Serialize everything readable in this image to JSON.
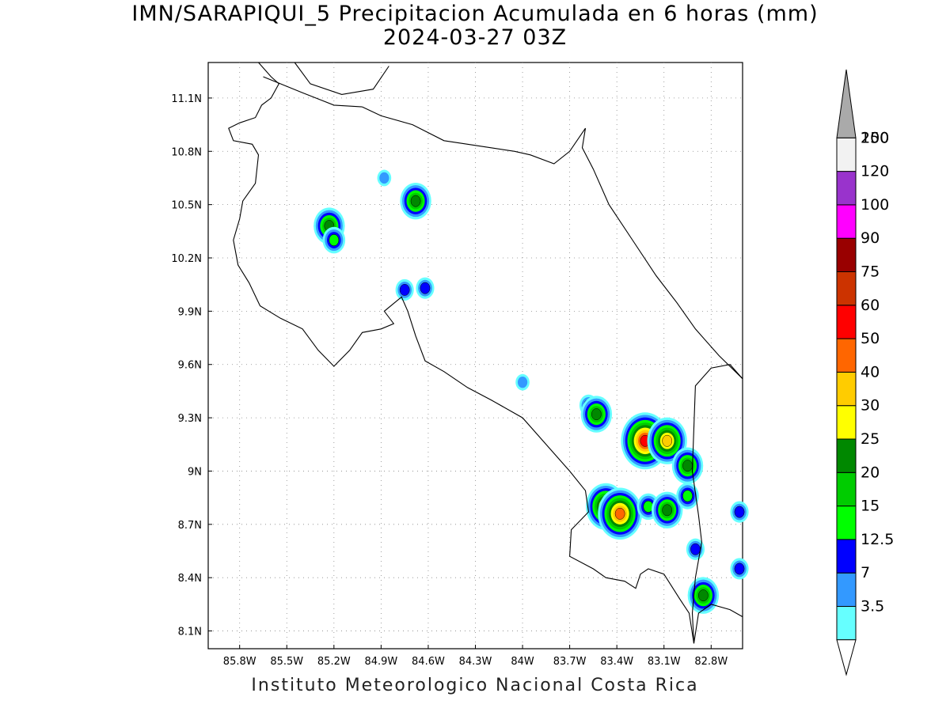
{
  "title": {
    "line1": "IMN/SARAPIQUI_5 Precipitacion Acumulada en 6 horas (mm)",
    "line2": "2024-03-27 03Z"
  },
  "credit": "Instituto Meteorologico Nacional Costa Rica",
  "map": {
    "lon_range": [
      -86.0,
      -82.6
    ],
    "lat_range": [
      8.0,
      11.3
    ],
    "lon_ticks": [
      {
        "value": -85.8,
        "label": "85.8W"
      },
      {
        "value": -85.5,
        "label": "85.5W"
      },
      {
        "value": -85.2,
        "label": "85.2W"
      },
      {
        "value": -84.9,
        "label": "84.9W"
      },
      {
        "value": -84.6,
        "label": "84.6W"
      },
      {
        "value": -84.3,
        "label": "84.3W"
      },
      {
        "value": -84.0,
        "label": "84W"
      },
      {
        "value": -83.7,
        "label": "83.7W"
      },
      {
        "value": -83.4,
        "label": "83.4W"
      },
      {
        "value": -83.1,
        "label": "83.1W"
      },
      {
        "value": -82.8,
        "label": "82.8W"
      }
    ],
    "lat_ticks": [
      {
        "value": 11.1,
        "label": "11.1N"
      },
      {
        "value": 10.8,
        "label": "10.8N"
      },
      {
        "value": 10.5,
        "label": "10.5N"
      },
      {
        "value": 10.2,
        "label": "10.2N"
      },
      {
        "value": 9.9,
        "label": "9.9N"
      },
      {
        "value": 9.6,
        "label": "9.6N"
      },
      {
        "value": 9.3,
        "label": "9.3N"
      },
      {
        "value": 9.0,
        "label": "9N"
      },
      {
        "value": 8.7,
        "label": "8.7N"
      },
      {
        "value": 8.4,
        "label": "8.4N"
      },
      {
        "value": 8.1,
        "label": "8.1N"
      }
    ],
    "grid": "dotted",
    "coastline": [
      [
        -85.68,
        11.3
      ],
      [
        -85.6,
        11.22
      ],
      [
        -85.55,
        11.18
      ],
      [
        -85.6,
        11.1
      ],
      [
        -85.66,
        11.06
      ],
      [
        -85.7,
        10.99
      ],
      [
        -85.8,
        10.96
      ],
      [
        -85.87,
        10.93
      ],
      [
        -85.84,
        10.86
      ],
      [
        -85.72,
        10.84
      ],
      [
        -85.68,
        10.78
      ],
      [
        -85.7,
        10.62
      ],
      [
        -85.78,
        10.52
      ],
      [
        -85.8,
        10.42
      ],
      [
        -85.84,
        10.3
      ],
      [
        -85.81,
        10.16
      ],
      [
        -85.74,
        10.06
      ],
      [
        -85.67,
        9.93
      ],
      [
        -85.54,
        9.86
      ],
      [
        -85.4,
        9.8
      ],
      [
        -85.3,
        9.68
      ],
      [
        -85.2,
        9.59
      ],
      [
        -85.1,
        9.68
      ],
      [
        -85.02,
        9.78
      ],
      [
        -84.9,
        9.8
      ],
      [
        -84.82,
        9.83
      ],
      [
        -84.88,
        9.9
      ],
      [
        -84.77,
        9.98
      ],
      [
        -84.73,
        9.9
      ],
      [
        -84.68,
        9.76
      ],
      [
        -84.62,
        9.62
      ],
      [
        -84.5,
        9.56
      ],
      [
        -84.35,
        9.47
      ],
      [
        -84.2,
        9.4
      ],
      [
        -84.0,
        9.3
      ],
      [
        -83.85,
        9.15
      ],
      [
        -83.7,
        9.0
      ],
      [
        -83.6,
        8.89
      ],
      [
        -83.58,
        8.77
      ],
      [
        -83.69,
        8.67
      ],
      [
        -83.7,
        8.52
      ],
      [
        -83.55,
        8.45
      ],
      [
        -83.47,
        8.4
      ],
      [
        -83.35,
        8.38
      ],
      [
        -83.28,
        8.34
      ],
      [
        -83.25,
        8.42
      ],
      [
        -83.2,
        8.45
      ],
      [
        -83.1,
        8.42
      ],
      [
        -83.0,
        8.28
      ],
      [
        -82.94,
        8.2
      ],
      [
        -82.91,
        8.03
      ],
      [
        -82.88,
        8.2
      ],
      [
        -82.8,
        8.25
      ],
      [
        -82.68,
        8.22
      ],
      [
        -82.6,
        8.18
      ]
    ],
    "caribbean_coast": [
      [
        -85.02,
        11.05
      ],
      [
        -84.9,
        11.0
      ],
      [
        -84.7,
        10.95
      ],
      [
        -84.5,
        10.86
      ],
      [
        -84.35,
        10.84
      ],
      [
        -84.2,
        10.82
      ],
      [
        -84.05,
        10.8
      ],
      [
        -83.95,
        10.78
      ],
      [
        -83.8,
        10.73
      ],
      [
        -83.7,
        10.8
      ],
      [
        -83.6,
        10.93
      ],
      [
        -83.62,
        10.82
      ],
      [
        -83.55,
        10.7
      ],
      [
        -83.45,
        10.5
      ],
      [
        -83.3,
        10.3
      ],
      [
        -83.15,
        10.1
      ],
      [
        -83.02,
        9.95
      ],
      [
        -82.9,
        9.8
      ],
      [
        -82.75,
        9.65
      ],
      [
        -82.6,
        9.52
      ]
    ],
    "border": [
      [
        -85.65,
        11.22
      ],
      [
        -85.4,
        11.13
      ],
      [
        -85.2,
        11.06
      ],
      [
        -85.02,
        11.05
      ]
    ],
    "panama_border": [
      [
        -82.6,
        9.52
      ],
      [
        -82.68,
        9.6
      ],
      [
        -82.8,
        9.58
      ],
      [
        -82.9,
        9.48
      ],
      [
        -82.92,
        9.0
      ],
      [
        -82.88,
        8.75
      ],
      [
        -82.86,
        8.6
      ],
      [
        -82.9,
        8.4
      ],
      [
        -82.92,
        8.2
      ],
      [
        -82.91,
        8.03
      ]
    ],
    "nicaragua_lake": [
      [
        -85.45,
        11.3
      ],
      [
        -85.35,
        11.18
      ],
      [
        -85.15,
        11.12
      ],
      [
        -84.95,
        11.15
      ],
      [
        -84.85,
        11.28
      ]
    ],
    "precip_cells": [
      {
        "lon": -85.23,
        "lat": 10.38,
        "peak": 25
      },
      {
        "lon": -85.2,
        "lat": 10.3,
        "peak": 15
      },
      {
        "lon": -84.68,
        "lat": 10.52,
        "peak": 25
      },
      {
        "lon": -84.88,
        "lat": 10.65,
        "peak": 7
      },
      {
        "lon": -84.62,
        "lat": 10.03,
        "peak": 12.5
      },
      {
        "lon": -84.75,
        "lat": 10.02,
        "peak": 12.5
      },
      {
        "lon": -83.58,
        "lat": 9.37,
        "peak": 12.5
      },
      {
        "lon": -83.53,
        "lat": 9.32,
        "peak": 25
      },
      {
        "lon": -83.22,
        "lat": 9.17,
        "peak": 60
      },
      {
        "lon": -83.08,
        "lat": 9.17,
        "peak": 40
      },
      {
        "lon": -82.95,
        "lat": 9.03,
        "peak": 25
      },
      {
        "lon": -83.47,
        "lat": 8.8,
        "peak": 40
      },
      {
        "lon": -83.38,
        "lat": 8.76,
        "peak": 50
      },
      {
        "lon": -83.2,
        "lat": 8.8,
        "peak": 15
      },
      {
        "lon": -83.08,
        "lat": 8.78,
        "peak": 25
      },
      {
        "lon": -82.95,
        "lat": 8.86,
        "peak": 15
      },
      {
        "lon": -82.9,
        "lat": 8.56,
        "peak": 12.5
      },
      {
        "lon": -82.85,
        "lat": 8.3,
        "peak": 25
      },
      {
        "lon": -82.62,
        "lat": 8.77,
        "peak": 12.5
      },
      {
        "lon": -82.62,
        "lat": 8.45,
        "peak": 12.5
      },
      {
        "lon": -84.0,
        "lat": 9.5,
        "peak": 7
      }
    ]
  },
  "colorbar": {
    "levels": [
      {
        "label": "3.5",
        "color": "#66ffff"
      },
      {
        "label": "7",
        "color": "#3399ff"
      },
      {
        "label": "12.5",
        "color": "#0000ff"
      },
      {
        "label": "15",
        "color": "#00ff00"
      },
      {
        "label": "20",
        "color": "#00cc00"
      },
      {
        "label": "25",
        "color": "#008800"
      },
      {
        "label": "30",
        "color": "#ffff00"
      },
      {
        "label": "40",
        "color": "#ffcc00"
      },
      {
        "label": "50",
        "color": "#ff6600"
      },
      {
        "label": "60",
        "color": "#ff0000"
      },
      {
        "label": "75",
        "color": "#cc3300"
      },
      {
        "label": "90",
        "color": "#990000"
      },
      {
        "label": "100",
        "color": "#ff00ff"
      },
      {
        "label": "120",
        "color": "#9933cc"
      },
      {
        "label": "150",
        "color": "#f2f2f2"
      },
      {
        "label": "200",
        "color": "#aaaaaa"
      }
    ]
  }
}
